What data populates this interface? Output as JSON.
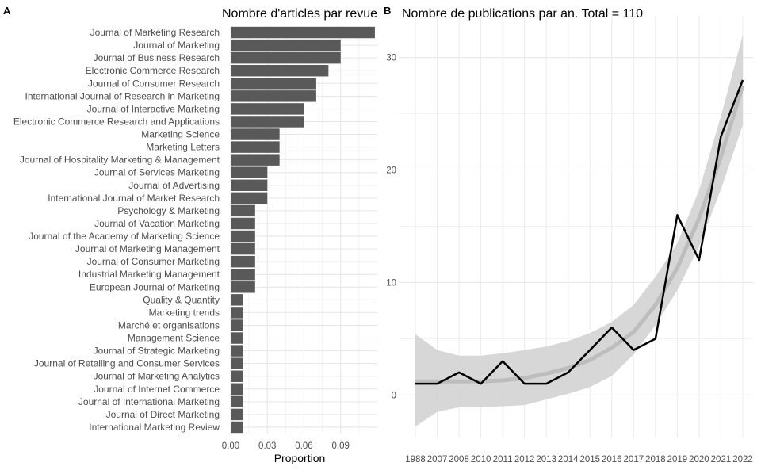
{
  "chart_data": [
    {
      "type": "bar",
      "orientation": "horizontal",
      "panel_label": "A",
      "title": "Nombre d'articles par revue",
      "xlabel": "Proportion",
      "ylabel": "",
      "xlim": [
        0,
        0.12
      ],
      "xticks": [
        "0.00",
        "0.03",
        "0.06",
        "0.09"
      ],
      "grid": true,
      "bar_color": "#595959",
      "categories": [
        "Journal of Marketing Research",
        "Journal of Marketing",
        "Journal of Business Research",
        "Electronic Commerce Research",
        "Journal of Consumer Research",
        "International Journal of Research in Marketing",
        "Journal of Interactive Marketing",
        "Electronic Commerce Research and Applications",
        "Marketing Science",
        "Marketing Letters",
        "Journal of Hospitality Marketing & Management",
        "Journal of Services Marketing",
        "Journal of Advertising",
        "International Journal of Market Research",
        "Psychology & Marketing",
        "Journal of Vacation Marketing",
        "Journal of the Academy of Marketing Science",
        "Journal of Marketing Management",
        "Journal of Consumer Marketing",
        "Industrial Marketing Management",
        "European Journal of Marketing",
        "Quality & Quantity",
        "Marketing trends",
        "Marché et organisations",
        "Management Science",
        "Journal of Strategic Marketing",
        "Journal of Retailing and Consumer Services",
        "Journal of Marketing Analytics",
        "Journal of Internet Commerce",
        "Journal of International Marketing",
        "Journal of Direct Marketing",
        "International Marketing Review"
      ],
      "values": [
        0.118,
        0.09,
        0.09,
        0.08,
        0.07,
        0.07,
        0.06,
        0.06,
        0.04,
        0.04,
        0.04,
        0.03,
        0.03,
        0.03,
        0.02,
        0.02,
        0.02,
        0.02,
        0.02,
        0.02,
        0.02,
        0.01,
        0.01,
        0.01,
        0.01,
        0.01,
        0.01,
        0.01,
        0.01,
        0.01,
        0.01,
        0.01
      ]
    },
    {
      "type": "line",
      "panel_label": "B",
      "title": "Nombre de publications par an. Total = 110",
      "xlabel": "",
      "ylabel": "",
      "x": [
        "1988",
        "2007",
        "2008",
        "2010",
        "2011",
        "2012",
        "2013",
        "2014",
        "2015",
        "2016",
        "2017",
        "2018",
        "2019",
        "2020",
        "2021",
        "2022"
      ],
      "series": [
        {
          "values": [
            1,
            1,
            2,
            1,
            3,
            1,
            1,
            2,
            4,
            6,
            4,
            5,
            16,
            12,
            23,
            28
          ],
          "color": "#000000"
        }
      ],
      "smooth_trend": {
        "values": [
          1.2,
          1.2,
          1.2,
          1.2,
          1.3,
          1.5,
          1.9,
          2.4,
          3.1,
          4.2,
          5.6,
          8.0,
          11.3,
          15.7,
          21.2,
          27.5
        ],
        "ci_lower": [
          -2.8,
          -1.5,
          -1.1,
          -1.1,
          -1.0,
          -0.9,
          -0.4,
          0.1,
          0.7,
          1.7,
          3.6,
          6.2,
          9.3,
          13.2,
          18.3,
          24.0
        ],
        "ci_upper": [
          5.4,
          4.0,
          3.5,
          3.5,
          3.7,
          4.0,
          4.3,
          4.8,
          5.5,
          6.5,
          8.0,
          10.5,
          13.5,
          18.2,
          24.8,
          32.0
        ],
        "line_color": "#bdbdbd",
        "ribbon_color": "#d3d3d3"
      },
      "ylim": [
        -3.5,
        33
      ],
      "yticks": [
        "0",
        "10",
        "20",
        "30"
      ],
      "grid": true
    }
  ]
}
